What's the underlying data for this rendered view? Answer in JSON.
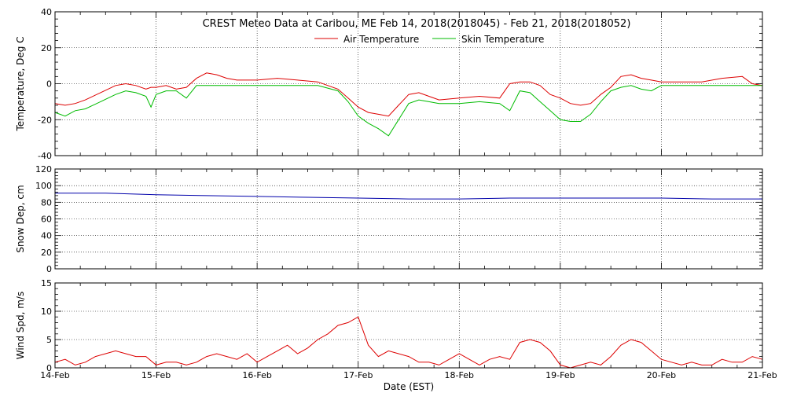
{
  "figure": {
    "title": "CREST Meteo Data at Caribou, ME   Feb 14, 2018(2018045) - Feb 21, 2018(2018052)",
    "xlabel": "Date (EST)"
  },
  "colors": {
    "air_temperature": "#dd0000",
    "skin_temperature": "#00bb00",
    "snow_depth": "#0000aa",
    "wind_speed": "#dd0000",
    "grid": "#000000",
    "axis": "#000000"
  },
  "x_ticks": [
    "14-Feb",
    "15-Feb",
    "16-Feb",
    "17-Feb",
    "18-Feb",
    "19-Feb",
    "20-Feb",
    "21-Feb"
  ],
  "chart_data": [
    {
      "type": "line",
      "ylabel": "Temperature, Deg C",
      "ylim": [
        -40,
        40
      ],
      "yticks": [
        -40,
        -20,
        0,
        20,
        40
      ],
      "xlim": [
        "14-Feb",
        "21-Feb"
      ],
      "grid": true,
      "legend_placement": "top-center",
      "x_days": [
        0,
        0.1,
        0.2,
        0.3,
        0.45,
        0.6,
        0.7,
        0.8,
        0.9,
        0.95,
        1.0,
        1.1,
        1.2,
        1.3,
        1.4,
        1.5,
        1.6,
        1.7,
        1.8,
        1.9,
        2.0,
        2.2,
        2.4,
        2.6,
        2.8,
        2.9,
        3.0,
        3.1,
        3.2,
        3.3,
        3.4,
        3.5,
        3.6,
        3.7,
        3.8,
        4.0,
        4.2,
        4.4,
        4.5,
        4.6,
        4.7,
        4.8,
        4.9,
        5.0,
        5.1,
        5.2,
        5.3,
        5.4,
        5.5,
        5.6,
        5.7,
        5.8,
        5.9,
        6.0,
        6.2,
        6.4,
        6.6,
        6.8,
        6.9,
        7.0
      ],
      "series": [
        {
          "name": "Air Temperature",
          "values": [
            -11,
            -12,
            -11,
            -9,
            -5,
            -1,
            0,
            -1,
            -3,
            -2,
            -2,
            -1,
            -3,
            -2,
            3,
            6,
            5,
            3,
            2,
            2,
            2,
            3,
            2,
            1,
            -3,
            -8,
            -13,
            -16,
            -17,
            -18,
            -12,
            -6,
            -5,
            -7,
            -9,
            -8,
            -7,
            -8,
            0,
            1,
            1,
            -1,
            -6,
            -8,
            -11,
            -12,
            -11,
            -6,
            -2,
            4,
            5,
            3,
            2,
            1,
            1,
            1,
            3,
            4,
            0,
            -1
          ]
        },
        {
          "name": "Skin Temperature",
          "values": [
            -16,
            -18,
            -15,
            -14,
            -10,
            -6,
            -4,
            -5,
            -7,
            -13,
            -6,
            -4,
            -4,
            -8,
            -1,
            -1,
            -1,
            -1,
            -1,
            -1,
            -1,
            -1,
            -1,
            -1,
            -4,
            -10,
            -18,
            -22,
            -25,
            -29,
            -20,
            -11,
            -9,
            -10,
            -11,
            -11,
            -10,
            -11,
            -15,
            -4,
            -5,
            -10,
            -15,
            -20,
            -21,
            -21,
            -17,
            -10,
            -4,
            -2,
            -1,
            -3,
            -4,
            -1,
            -1,
            -1,
            -1,
            -1,
            -1,
            -1
          ]
        }
      ]
    },
    {
      "type": "line",
      "ylabel": "Snow Dep, cm",
      "ylim": [
        0,
        120
      ],
      "yticks": [
        0,
        20,
        40,
        60,
        80,
        100,
        120
      ],
      "grid": true,
      "x_days": [
        0,
        0.5,
        1.0,
        1.5,
        2.0,
        2.5,
        3.0,
        3.5,
        4.0,
        4.5,
        5.0,
        5.5,
        6.0,
        6.5,
        7.0
      ],
      "series": [
        {
          "values": [
            91,
            91,
            89,
            88,
            87,
            86,
            85,
            84,
            84,
            85,
            85,
            85,
            85,
            84,
            84
          ]
        }
      ]
    },
    {
      "type": "line",
      "ylabel": "Wind Spd, m/s",
      "ylim": [
        0,
        15
      ],
      "yticks": [
        0,
        5,
        10,
        15
      ],
      "grid": true,
      "x_days": [
        0,
        0.1,
        0.2,
        0.3,
        0.4,
        0.5,
        0.6,
        0.7,
        0.8,
        0.9,
        1.0,
        1.1,
        1.2,
        1.3,
        1.4,
        1.5,
        1.6,
        1.7,
        1.8,
        1.9,
        2.0,
        2.1,
        2.2,
        2.3,
        2.4,
        2.5,
        2.6,
        2.7,
        2.8,
        2.9,
        3.0,
        3.1,
        3.2,
        3.3,
        3.4,
        3.5,
        3.6,
        3.7,
        3.8,
        3.9,
        4.0,
        4.1,
        4.2,
        4.3,
        4.4,
        4.5,
        4.6,
        4.7,
        4.8,
        4.9,
        5.0,
        5.1,
        5.2,
        5.3,
        5.4,
        5.5,
        5.6,
        5.7,
        5.8,
        5.9,
        6.0,
        6.1,
        6.2,
        6.3,
        6.4,
        6.5,
        6.6,
        6.7,
        6.8,
        6.9,
        7.0
      ],
      "series": [
        {
          "values": [
            1,
            1.5,
            0.5,
            1,
            2,
            2.5,
            3,
            2.5,
            2,
            2,
            0.5,
            1,
            1,
            0.5,
            1,
            2,
            2.5,
            2,
            1.5,
            2.5,
            1,
            2,
            3,
            4,
            2.5,
            3.5,
            5,
            6,
            7.5,
            8,
            9,
            4,
            2,
            3,
            2.5,
            2,
            1,
            1,
            0.5,
            1.5,
            2.5,
            1.5,
            0.5,
            1.5,
            2,
            1.5,
            4.5,
            5,
            4.5,
            3,
            0.5,
            0,
            0.5,
            1,
            0.5,
            2,
            4,
            5,
            4.5,
            3,
            1.5,
            1,
            0.5,
            1,
            0.5,
            0.5,
            1.5,
            1,
            1,
            2,
            1.5
          ]
        }
      ]
    }
  ]
}
